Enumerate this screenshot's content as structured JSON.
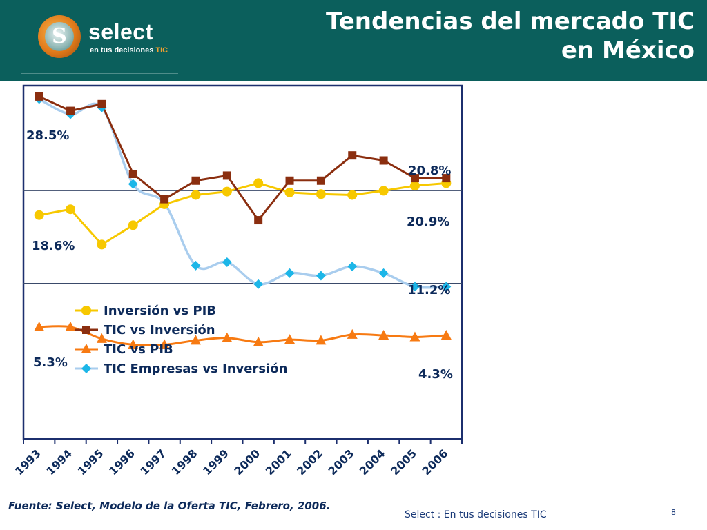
{
  "header": {
    "logo_word": "select",
    "logo_tagline": "en tus decisiones",
    "logo_tagline_accent": "TIC",
    "title_line1": "Tendencias del mercado TIC",
    "title_line2": "en México"
  },
  "chart_data": {
    "type": "line",
    "title": "",
    "xlabel": "",
    "ylabel": "",
    "categories": [
      "1993",
      "1994",
      "1995",
      "1996",
      "1997",
      "1998",
      "1999",
      "2000",
      "2001",
      "2002",
      "2003",
      "2004",
      "2005",
      "2006"
    ],
    "series": [
      {
        "name": "Inversión vs PIB",
        "color": "#f7c800",
        "marker": "circle",
        "values": [
          18.6,
          19.3,
          15.1,
          17.4,
          19.9,
          21.0,
          21.4,
          22.4,
          21.3,
          21.1,
          21.0,
          21.5,
          22.1,
          22.4
        ]
      },
      {
        "name": "TIC  vs Inversión",
        "color": "#8b2e0f",
        "marker": "square",
        "values": [
          32.7,
          31.0,
          31.8,
          23.5,
          20.5,
          22.7,
          23.3,
          18.0,
          22.7,
          22.7,
          25.7,
          25.1,
          23.0,
          23.0
        ]
      },
      {
        "name": "TIC  vs PIB",
        "color": "#f77a12",
        "marker": "triangle",
        "values": [
          5.3,
          5.3,
          3.9,
          3.2,
          3.2,
          3.7,
          4.0,
          3.5,
          3.8,
          3.7,
          4.4,
          4.3,
          4.1,
          4.3
        ]
      },
      {
        "name": "TIC Empresas vs Inversión",
        "color": "#a9cdee",
        "marker": "diamond",
        "marker_color": "#1cb6e8",
        "values": [
          32.4,
          30.6,
          31.4,
          22.3,
          20.0,
          12.6,
          13.0,
          10.4,
          11.7,
          11.4,
          12.5,
          11.7,
          10.1,
          10.1
        ]
      }
    ],
    "ylim": [
      -8,
      34
    ],
    "reference_lines": [
      21.5,
      10.5
    ],
    "annotations": [
      "28.5%",
      "18.6%",
      "20.8%",
      "20.9%",
      "11.2%",
      "5.3%",
      "4.3%"
    ],
    "legend_position": "center-left",
    "grid": false
  },
  "footer": {
    "source": "Fuente: Select, Modelo de la Oferta TIC, Febrero, 2006.",
    "brand": "Select  : En tus decisiones TIC",
    "page": "8"
  }
}
